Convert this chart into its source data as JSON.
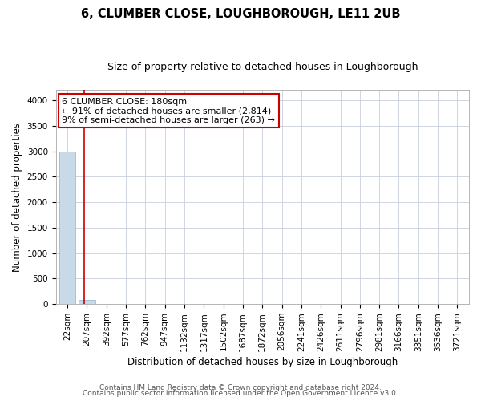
{
  "title": "6, CLUMBER CLOSE, LOUGHBOROUGH, LE11 2UB",
  "subtitle": "Size of property relative to detached houses in Loughborough",
  "xlabel": "Distribution of detached houses by size in Loughborough",
  "ylabel": "Number of detached properties",
  "footer_line1": "Contains HM Land Registry data © Crown copyright and database right 2024.",
  "footer_line2": "Contains public sector information licensed under the Open Government Licence v3.0.",
  "annotation_line1": "6 CLUMBER CLOSE: 180sqm",
  "annotation_line2": "← 91% of detached houses are smaller (2,814)",
  "annotation_line3": "9% of semi-detached houses are larger (263) →",
  "cat_labels": [
    "22sqm",
    "207sqm",
    "392sqm",
    "577sqm",
    "762sqm",
    "947sqm",
    "1132sqm",
    "1317sqm",
    "1502sqm",
    "1687sqm",
    "1872sqm",
    "2056sqm",
    "2241sqm",
    "2426sqm",
    "2611sqm",
    "2796sqm",
    "2981sqm",
    "3166sqm",
    "3351sqm",
    "3536sqm",
    "3721sqm"
  ],
  "bar_heights": [
    2995,
    82,
    0,
    0,
    0,
    0,
    0,
    0,
    0,
    0,
    0,
    0,
    0,
    0,
    0,
    0,
    0,
    0,
    0,
    0,
    0
  ],
  "bar_color": "#c8d9e8",
  "bar_edge_color": "#8ab4cc",
  "vline_color": "#cc0000",
  "annotation_box_color": "#cc0000",
  "annotation_text_color": "#000000",
  "grid_color": "#c8d0dc",
  "ylim": [
    0,
    4200
  ],
  "yticks": [
    0,
    500,
    1000,
    1500,
    2000,
    2500,
    3000,
    3500,
    4000
  ],
  "title_fontsize": 10.5,
  "subtitle_fontsize": 9,
  "axis_label_fontsize": 8.5,
  "tick_fontsize": 7.5,
  "footer_fontsize": 6.5,
  "annotation_fontsize": 8,
  "bg_color": "#ffffff"
}
